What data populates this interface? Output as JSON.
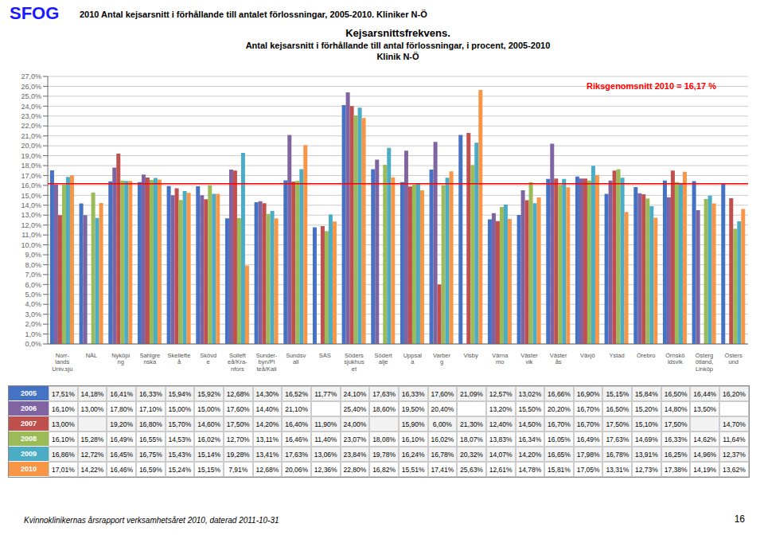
{
  "chart_data": {
    "type": "bar",
    "title": "Kejsarsnittsfrekvens.",
    "subtitle": [
      "Antal kejsarsnitt i förhållande till antal förlossningar, i procent, 2005-2010",
      "Klinik N-Ö"
    ],
    "annotations": [
      "2010 Antal kejsarsnitt i förhållande till antalet förlossningar, 2005-2010. Kliniker N-Ö",
      "SFOG",
      "Kvinnoklinikernas årsrapport verksamhetsåret 2010, daterad 2011-10-31",
      "16"
    ],
    "reference_lines": [
      {
        "y": 0.1617,
        "label": "Riksgenomsnitt 2010 = 16,17 %",
        "color": "red"
      }
    ],
    "categories": [
      "Norr-\nlands\nUniv.sju",
      "NÄL",
      "Nyköpi\nng",
      "Sahlgre\nnska",
      "Skellefte\nå",
      "Skövd\ne",
      "Solleft\neå/Kra-\nnfors",
      "Sunder-\nbyn/Pi\nteå/Kali",
      "Sundsv\nall",
      "SÄS",
      "Söders\nsjukhus\net",
      "Södert\nalje",
      "Uppsal\na",
      "Varber\ng",
      "Visby",
      "Värna\nmo",
      "Väster\nvik",
      "Väster\nås",
      "Växjö",
      "Ystad",
      "Örebro",
      "Örnskö\nldsvik",
      "Österg\nötland,\nLinköp",
      "Östers\nund"
    ],
    "series": [
      {
        "name": "2005",
        "color": "#4472C4",
        "values": [
          0.1751,
          0.1418,
          0.1641,
          0.1633,
          0.1594,
          0.1592,
          0.1268,
          0.143,
          0.1652,
          0.1177,
          0.241,
          0.1763,
          0.1633,
          0.176,
          0.2109,
          0.1257,
          0.1302,
          0.1666,
          0.169,
          0.1515,
          0.1584,
          0.165,
          0.1644,
          0.162
        ],
        "value_labels": [
          "17,51%",
          "14,18%",
          "16,41%",
          "16,33%",
          "15,94%",
          "15,92%",
          "12,68%",
          "14,30%",
          "16,52%",
          "11,77%",
          "24,10%",
          "17,63%",
          "16,33%",
          "17,60%",
          "21,09%",
          "12,57%",
          "13,02%",
          "16,66%",
          "16,90%",
          "15,15%",
          "15,84%",
          "16,50%",
          "16,44%",
          "16,20%"
        ]
      },
      {
        "name": "2006",
        "color": "#8064A2",
        "values": [
          0.161,
          0.13,
          0.178,
          0.171,
          0.15,
          0.15,
          0.176,
          0.144,
          0.211,
          null,
          0.254,
          0.186,
          0.195,
          0.204,
          null,
          0.132,
          0.155,
          0.202,
          0.167,
          0.165,
          0.152,
          0.148,
          0.135,
          null
        ],
        "value_labels": [
          "16,10%",
          "13,00%",
          "17,80%",
          "17,10%",
          "15,00%",
          "15,00%",
          "17,60%",
          "14,40%",
          "21,10%",
          null,
          "25,40%",
          "18,60%",
          "19,50%",
          "20,40%",
          null,
          "13,20%",
          "15,50%",
          "20,20%",
          "16,70%",
          "16,50%",
          "15,20%",
          "14,80%",
          "13,50%",
          null
        ]
      },
      {
        "name": "2007",
        "color": "#C0504D",
        "values": [
          0.13,
          null,
          0.192,
          0.168,
          0.157,
          0.146,
          0.175,
          0.142,
          0.164,
          0.119,
          0.24,
          null,
          0.159,
          0.06,
          0.213,
          0.124,
          0.145,
          0.167,
          0.167,
          0.175,
          0.151,
          0.175,
          null,
          0.147
        ],
        "value_labels": [
          "13,00%",
          null,
          "19,20%",
          "16,80%",
          "15,70%",
          "14,60%",
          "17,50%",
          "14,20%",
          "16,40%",
          "11,90%",
          "24,00%",
          null,
          "15,90%",
          "6,00%",
          "21,30%",
          "12,40%",
          "14,50%",
          "16,70%",
          "16,70%",
          "17,50%",
          "15,10%",
          "17,50%",
          null,
          "14,70%"
        ]
      },
      {
        "name": "2008",
        "color": "#9BBB59",
        "values": [
          0.161,
          0.1528,
          0.1649,
          0.1655,
          0.1453,
          0.1602,
          0.127,
          0.1311,
          0.1646,
          0.114,
          0.2307,
          0.1808,
          0.161,
          0.1602,
          0.1807,
          0.1383,
          0.1634,
          0.1605,
          0.1649,
          0.1763,
          0.1469,
          0.1633,
          0.1462,
          0.1164
        ],
        "value_labels": [
          "16,10%",
          "15,28%",
          "16,49%",
          "16,55%",
          "14,53%",
          "16,02%",
          "12,70%",
          "13,11%",
          "16,46%",
          "11,40%",
          "23,07%",
          "18,08%",
          "16,10%",
          "16,02%",
          "18,07%",
          "13,83%",
          "16,34%",
          "16,05%",
          "16,49%",
          "17,63%",
          "14,69%",
          "16,33%",
          "14,62%",
          "11,64%"
        ]
      },
      {
        "name": "2009",
        "color": "#4BACC6",
        "values": [
          0.1686,
          0.1272,
          0.1645,
          0.1675,
          0.1543,
          0.1514,
          0.1928,
          0.1341,
          0.1763,
          0.1306,
          0.2384,
          0.1978,
          0.1624,
          0.1678,
          0.2032,
          0.1407,
          0.142,
          0.1665,
          0.1798,
          0.1678,
          0.1391,
          0.1625,
          0.1496,
          0.1237
        ],
        "value_labels": [
          "16,86%",
          "12,72%",
          "16,45%",
          "16,75%",
          "15,43%",
          "15,14%",
          "19,28%",
          "13,41%",
          "17,63%",
          "13,06%",
          "23,84%",
          "19,78%",
          "16,24%",
          "16,78%",
          "20,32%",
          "14,07%",
          "14,20%",
          "16,65%",
          "17,98%",
          "16,78%",
          "13,91%",
          "16,25%",
          "14,96%",
          "12,37%"
        ]
      },
      {
        "name": "2010",
        "color": "#F79646",
        "values": [
          0.1701,
          0.1422,
          0.1646,
          0.1659,
          0.1524,
          0.1515,
          0.0791,
          0.1268,
          0.2006,
          0.1236,
          0.228,
          0.1682,
          0.1551,
          0.1741,
          0.2563,
          0.1261,
          0.1478,
          0.1581,
          0.1705,
          0.1331,
          0.1273,
          0.1738,
          0.1419,
          0.1362
        ],
        "value_labels": [
          "17,01%",
          "14,22%",
          "16,46%",
          "16,59%",
          "15,24%",
          "15,15%",
          "7,91%",
          "12,68%",
          "20,06%",
          "12,36%",
          "22,80%",
          "16,82%",
          "15,51%",
          "17,41%",
          "25,63%",
          "12,61%",
          "14,78%",
          "15,81%",
          "17,05%",
          "13,31%",
          "12,73%",
          "17,38%",
          "14,19%",
          "13,62%"
        ]
      }
    ],
    "ylim": [
      0,
      0.27
    ],
    "yticks": [
      {
        "value": 0,
        "label": "0,0%"
      },
      {
        "value": 0.01,
        "label": "1,0%"
      },
      {
        "value": 0.02,
        "label": "2,0%"
      },
      {
        "value": 0.03,
        "label": "3,0%"
      },
      {
        "value": 0.04,
        "label": "4,0%"
      },
      {
        "value": 0.05,
        "label": "5,0%"
      },
      {
        "value": 0.06,
        "label": "6,0%"
      },
      {
        "value": 0.07,
        "label": "7,0%"
      },
      {
        "value": 0.08,
        "label": "8,0%"
      },
      {
        "value": 0.09,
        "label": "9,0%"
      },
      {
        "value": 0.1,
        "label": "10,0%"
      },
      {
        "value": 0.11,
        "label": "11,0%"
      },
      {
        "value": 0.12,
        "label": "12,0%"
      },
      {
        "value": 0.13,
        "label": "13,0%"
      },
      {
        "value": 0.14,
        "label": "14,0%"
      },
      {
        "value": 0.15,
        "label": "15,0%"
      },
      {
        "value": 0.16,
        "label": "16,0%"
      },
      {
        "value": 0.17,
        "label": "17,0%"
      },
      {
        "value": 0.18,
        "label": "18,0%"
      },
      {
        "value": 0.19,
        "label": "19,0%"
      },
      {
        "value": 0.2,
        "label": "20,0%"
      },
      {
        "value": 0.21,
        "label": "21,0%"
      },
      {
        "value": 0.22,
        "label": "22,0%"
      },
      {
        "value": 0.23,
        "label": "23,0%"
      },
      {
        "value": 0.24,
        "label": "24,0%"
      },
      {
        "value": 0.25,
        "label": "25,0%"
      },
      {
        "value": 0.26,
        "label": "26,0%"
      },
      {
        "value": 0.27,
        "label": "27,0%"
      }
    ],
    "grid": true
  }
}
